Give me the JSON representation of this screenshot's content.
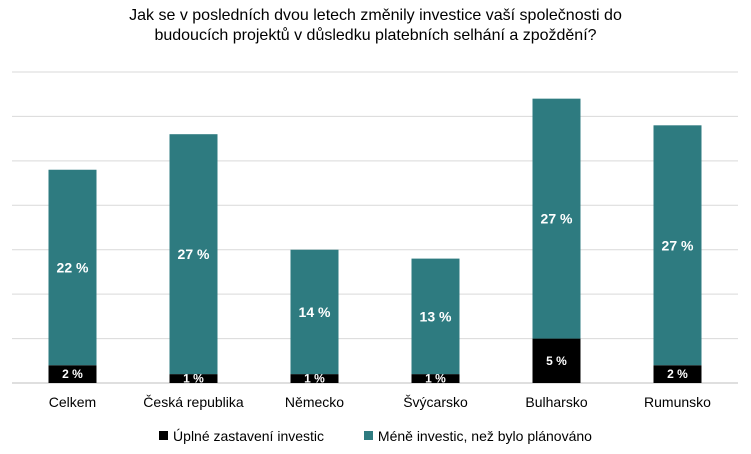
{
  "chart_data": {
    "type": "bar",
    "stacked": true,
    "title_lines": [
      "Jak se v posledních dvou letech změnily investice vaší společnosti do",
      "budoucích projektů v důsledku platebních selhání a zpoždění?"
    ],
    "categories": [
      "Celkem",
      "Česká republika",
      "Německo",
      "Švýcarsko",
      "Bulharsko",
      "Rumunsko"
    ],
    "series": [
      {
        "name": "Úplné zastavení investic",
        "color": "#000000",
        "values": [
          2,
          1,
          1,
          1,
          5,
          2
        ],
        "labels": [
          "2 %",
          "1 %",
          "1 %",
          "1 %",
          "5 %",
          "2 %"
        ]
      },
      {
        "name": "Méně investic, než bylo plánováno",
        "color": "#2e7b80",
        "values": [
          22,
          27,
          14,
          13,
          27,
          27
        ],
        "labels": [
          "22 %",
          "27 %",
          "14 %",
          "13 %",
          "27 %",
          "27 %"
        ]
      }
    ],
    "ylim": [
      0,
      35
    ],
    "grid": true,
    "legend_position": "bottom"
  }
}
